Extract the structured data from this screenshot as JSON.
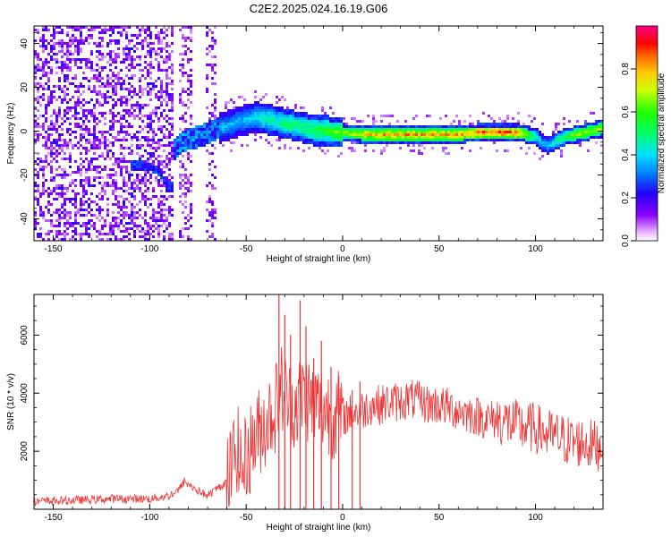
{
  "figure": {
    "title": "C2E2.2025.024.16.19.G06"
  },
  "chart_data": [
    {
      "type": "heatmap",
      "xlabel": "Height of straight line (km)",
      "ylabel": "Frequency (Hz)",
      "xlim": [
        -160,
        135
      ],
      "ylim": [
        -50,
        48
      ],
      "xticks": [
        "-150",
        "-100",
        "-50",
        "0",
        "50",
        "100"
      ],
      "yticks": [
        "-40",
        "-20",
        "0",
        "20",
        "40"
      ],
      "colorbar": {
        "label": "Normalized spectral amplitude",
        "range": [
          0,
          1
        ],
        "ticks": [
          "0.0",
          "0.2",
          "0.4",
          "0.6",
          "0.8"
        ]
      },
      "ridge": {
        "x": [
          -92,
          -88,
          -85,
          -80,
          -75,
          -70,
          -65,
          -60,
          -55,
          -50,
          -45,
          -40,
          -35,
          -30,
          -25,
          -20,
          -15,
          -10,
          -5,
          0,
          10,
          20,
          30,
          40,
          50,
          60,
          70,
          80,
          90,
          95,
          100,
          103,
          106,
          110,
          115,
          120,
          125,
          130,
          135
        ],
        "y": [
          -25,
          -8,
          -5,
          -3,
          -2,
          0,
          2,
          3,
          5,
          6,
          7,
          6,
          5,
          4,
          3,
          2,
          1,
          1,
          0,
          0,
          -1,
          -1,
          -1,
          -1,
          -1,
          -1,
          0,
          0,
          0,
          -1,
          -2,
          -5,
          -6,
          -4,
          -2,
          -1,
          0,
          1,
          2
        ],
        "amplitude": [
          0.3,
          0.3,
          0.3,
          0.3,
          0.35,
          0.35,
          0.4,
          0.4,
          0.4,
          0.4,
          0.45,
          0.5,
          0.5,
          0.55,
          0.55,
          0.55,
          0.6,
          0.6,
          0.65,
          0.7,
          0.8,
          0.85,
          0.85,
          0.85,
          0.85,
          0.85,
          0.9,
          0.95,
          0.9,
          0.7,
          0.5,
          0.4,
          0.4,
          0.5,
          0.6,
          0.7,
          0.75,
          0.75,
          0.75
        ]
      },
      "branch": {
        "x": [
          -110,
          -105,
          -100,
          -95,
          -92
        ],
        "y": [
          -15,
          -15,
          -16,
          -18,
          -25
        ]
      }
    },
    {
      "type": "line",
      "xlabel": "Height of straight line (km)",
      "ylabel": "SNR (10 * v/v)",
      "xlim": [
        -160,
        135
      ],
      "ylim": [
        0,
        7400
      ],
      "xticks": [
        "-150",
        "-100",
        "-50",
        "0",
        "50",
        "100"
      ],
      "yticks": [
        "2000",
        "4000",
        "6000"
      ],
      "color": "#ee3333",
      "series": [
        {
          "x": [
            -160,
            -140,
            -120,
            -100,
            -90,
            -85,
            -82,
            -78,
            -70,
            -60,
            -57,
            -55,
            -52,
            -50,
            -45,
            -40,
            -35,
            -32,
            -30,
            -28,
            -25,
            -22,
            -20,
            -15,
            -10,
            -5,
            0,
            5,
            10,
            15,
            20,
            25,
            30,
            35,
            40,
            45,
            50,
            55,
            60,
            65,
            70,
            75,
            80,
            85,
            90,
            95,
            100,
            105,
            110,
            115,
            120,
            125,
            130,
            135
          ],
          "y": [
            200,
            250,
            300,
            300,
            400,
            600,
            900,
            700,
            400,
            900,
            1600,
            2200,
            1300,
            1800,
            2500,
            3000,
            3500,
            4200,
            4000,
            3600,
            3600,
            3800,
            4000,
            3600,
            3500,
            3300,
            3200,
            3300,
            3400,
            3600,
            3600,
            3700,
            3700,
            3800,
            3700,
            3600,
            3600,
            3500,
            3400,
            3300,
            3200,
            3100,
            3100,
            3000,
            2900,
            2800,
            2800,
            2600,
            2500,
            2400,
            2300,
            2300,
            2200,
            2200
          ]
        }
      ],
      "spikes": [
        {
          "x": -33,
          "y": 7400
        },
        {
          "x": -30,
          "y": 6700
        },
        {
          "x": -27,
          "y": 6000
        },
        {
          "x": -22,
          "y": 7200
        },
        {
          "x": -19,
          "y": 6300
        },
        {
          "x": -15,
          "y": 5200
        },
        {
          "x": -11,
          "y": 5800
        },
        {
          "x": -6,
          "y": 4900
        },
        {
          "x": -2,
          "y": 4600
        },
        {
          "x": 5,
          "y": 4100
        },
        {
          "x": 9,
          "y": 4400
        }
      ]
    }
  ]
}
